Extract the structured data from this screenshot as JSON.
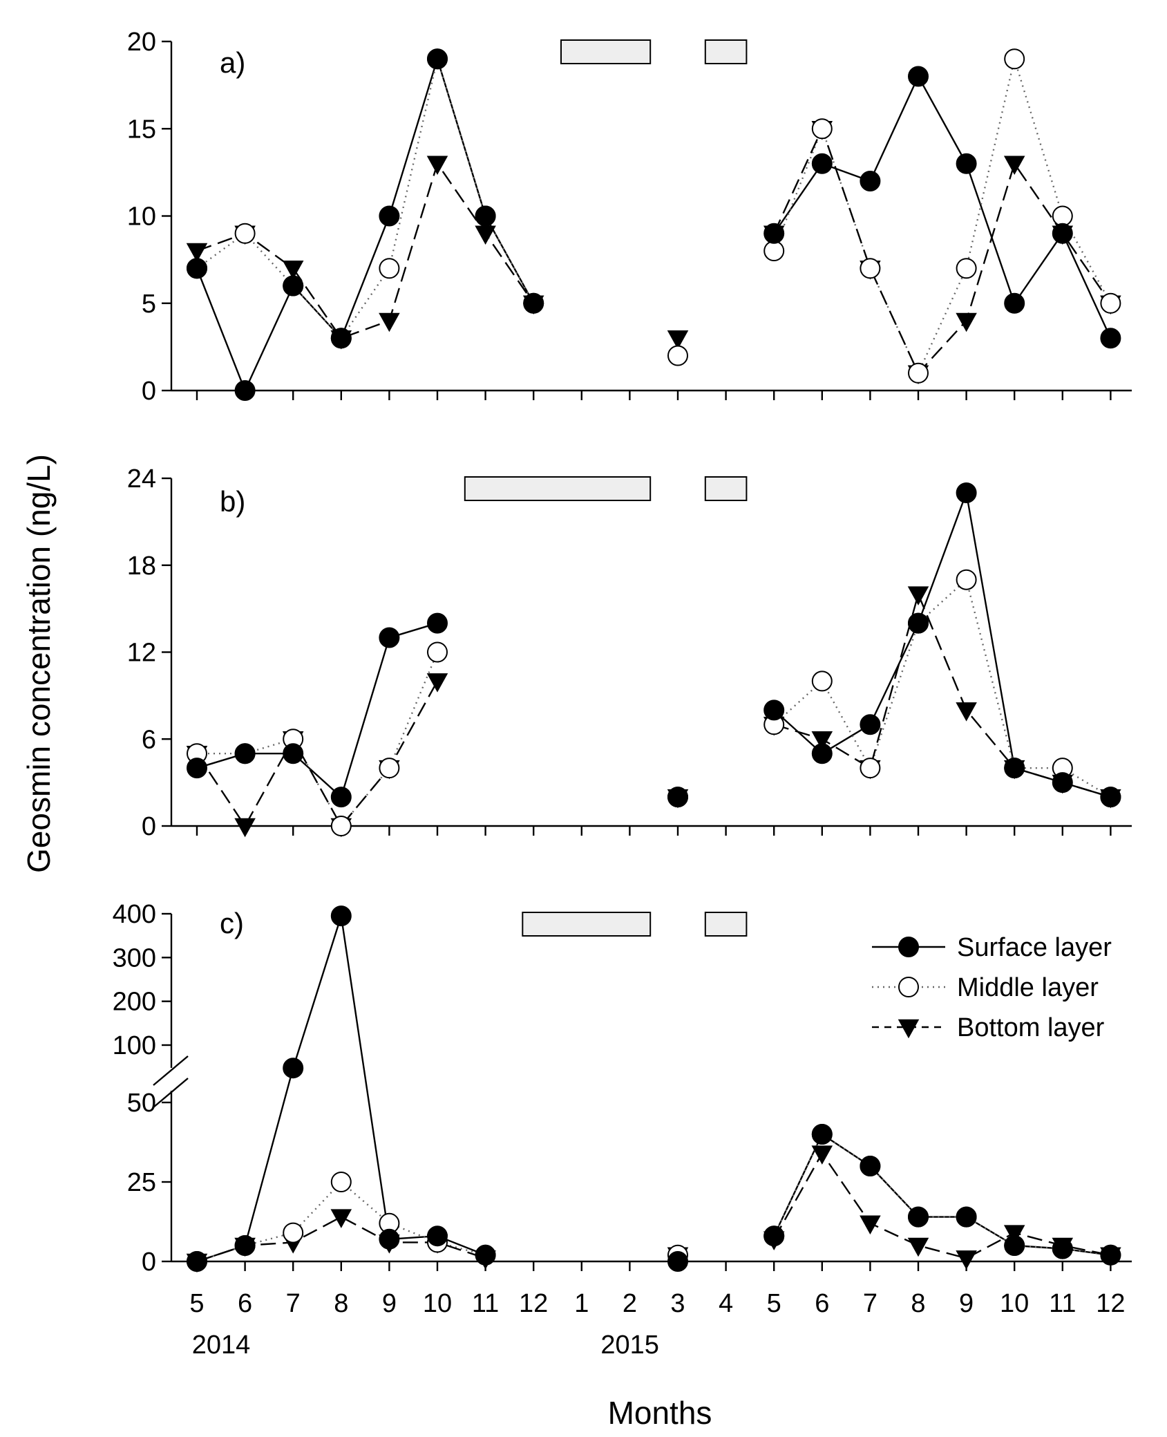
{
  "figure": {
    "ylabel": "Geosmin concentration (ng/L)",
    "xlabel": "Months",
    "x_tick_labels": [
      "5",
      "6",
      "7",
      "8",
      "9",
      "10",
      "11",
      "12",
      "1",
      "2",
      "3",
      "4",
      "5",
      "6",
      "7",
      "8",
      "9",
      "10",
      "11",
      "12"
    ],
    "year_labels": [
      {
        "text": "2014",
        "month_index": 0
      },
      {
        "text": "2015",
        "month_index": 8.5
      }
    ],
    "legend": [
      {
        "series": "surface",
        "label": "Surface layer"
      },
      {
        "series": "middle",
        "label": "Middle layer"
      },
      {
        "series": "bottom",
        "label": "Bottom layer"
      }
    ]
  },
  "chart_data": [
    {
      "type": "line",
      "panel": "a)",
      "x": [
        0,
        1,
        2,
        3,
        4,
        5,
        6,
        7,
        8,
        9,
        10,
        11,
        12,
        13,
        14,
        15,
        16,
        17,
        18,
        19
      ],
      "ylim": [
        0,
        20
      ],
      "y_ticks": [
        0,
        5,
        10,
        15,
        20
      ],
      "shaded_periods": [
        [
          7.5,
          9.5
        ],
        [
          10.5,
          11.5
        ]
      ],
      "series": [
        {
          "name": "Surface layer",
          "key": "surface",
          "values": [
            7,
            0,
            6,
            3,
            10,
            19,
            10,
            5,
            null,
            null,
            null,
            null,
            9,
            13,
            12,
            18,
            13,
            5,
            9,
            3
          ]
        },
        {
          "name": "Middle layer",
          "key": "middle",
          "values": [
            7,
            9,
            6,
            3,
            7,
            19,
            10,
            5,
            null,
            null,
            2,
            null,
            8,
            15,
            7,
            1,
            7,
            19,
            10,
            5
          ]
        },
        {
          "name": "Bottom layer",
          "key": "bottom",
          "values": [
            8,
            9,
            7,
            3,
            4,
            13,
            9,
            5,
            null,
            null,
            3,
            null,
            9,
            15,
            7,
            1,
            4,
            13,
            9,
            5
          ]
        }
      ]
    },
    {
      "type": "line",
      "panel": "b)",
      "x": [
        0,
        1,
        2,
        3,
        4,
        5,
        6,
        7,
        8,
        9,
        10,
        11,
        12,
        13,
        14,
        15,
        16,
        17,
        18,
        19
      ],
      "ylim": [
        0,
        24
      ],
      "y_ticks": [
        0,
        6,
        12,
        18,
        24
      ],
      "shaded_periods": [
        [
          5.5,
          9.5
        ],
        [
          10.5,
          11.5
        ]
      ],
      "series": [
        {
          "name": "Surface layer",
          "key": "surface",
          "values": [
            4,
            5,
            5,
            2,
            13,
            14,
            null,
            null,
            null,
            null,
            2,
            null,
            8,
            5,
            7,
            14,
            23,
            4,
            3,
            2
          ]
        },
        {
          "name": "Middle layer",
          "key": "middle",
          "values": [
            5,
            5,
            6,
            0,
            4,
            12,
            null,
            null,
            null,
            null,
            2,
            null,
            7,
            10,
            4,
            14,
            17,
            4,
            4,
            2
          ]
        },
        {
          "name": "Bottom layer",
          "key": "bottom",
          "values": [
            5,
            0,
            6,
            0,
            4,
            10,
            null,
            null,
            null,
            null,
            2,
            null,
            7,
            6,
            4,
            16,
            8,
            4,
            3,
            2
          ]
        }
      ]
    },
    {
      "type": "line",
      "panel": "c)",
      "x": [
        0,
        1,
        2,
        3,
        4,
        5,
        6,
        7,
        8,
        9,
        10,
        11,
        12,
        13,
        14,
        15,
        16,
        17,
        18,
        19
      ],
      "ylim": [
        0,
        400
      ],
      "y_axis_break": [
        50,
        100
      ],
      "y_ticks": [
        0,
        25,
        50,
        100,
        200,
        300,
        400
      ],
      "shaded_periods": [
        [
          6.7,
          9.5
        ],
        [
          10.5,
          11.5
        ]
      ],
      "series": [
        {
          "name": "Surface layer",
          "key": "surface",
          "values": [
            0,
            5,
            80,
            395,
            7,
            8,
            2,
            null,
            null,
            null,
            0,
            null,
            8,
            40,
            30,
            14,
            14,
            5,
            4,
            2
          ]
        },
        {
          "name": "Middle layer",
          "key": "middle",
          "values": [
            0,
            5,
            9,
            25,
            12,
            6,
            2,
            null,
            null,
            null,
            2,
            null,
            8,
            40,
            30,
            14,
            14,
            5,
            4,
            2
          ]
        },
        {
          "name": "Bottom layer",
          "key": "bottom",
          "values": [
            0,
            5,
            6,
            14,
            6,
            6,
            1,
            null,
            null,
            null,
            2,
            null,
            7,
            34,
            12,
            5,
            1,
            9,
            5,
            2
          ]
        }
      ]
    }
  ]
}
